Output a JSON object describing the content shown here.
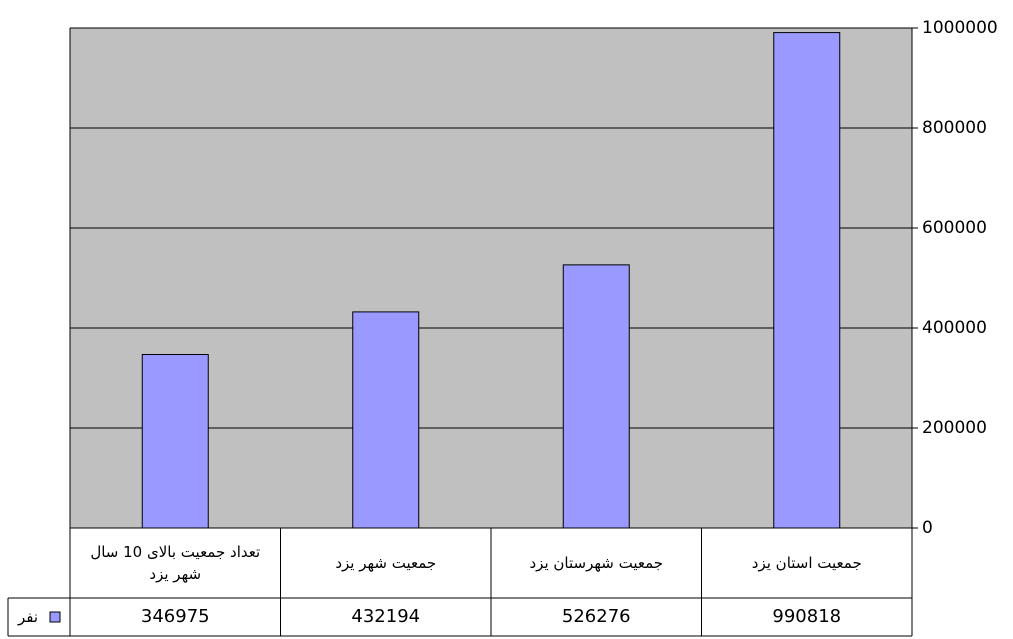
{
  "chart_data": {
    "type": "bar",
    "categories": [
      "تعداد جمعیت بالای 10 سال شهر یزد",
      "جمعیت شهر یزد",
      "جمعیت شهرستان یزد",
      "جمعیت استان یزد"
    ],
    "series": [
      {
        "name": "نفر",
        "color": "#9999ff",
        "values": [
          346975,
          432194,
          526276,
          990818
        ]
      }
    ],
    "ylim": [
      0,
      1000000
    ],
    "yticks": [
      0,
      200000,
      400000,
      600000,
      800000,
      1000000
    ],
    "grid": true,
    "y_axis_side": "right",
    "data_table": true
  }
}
